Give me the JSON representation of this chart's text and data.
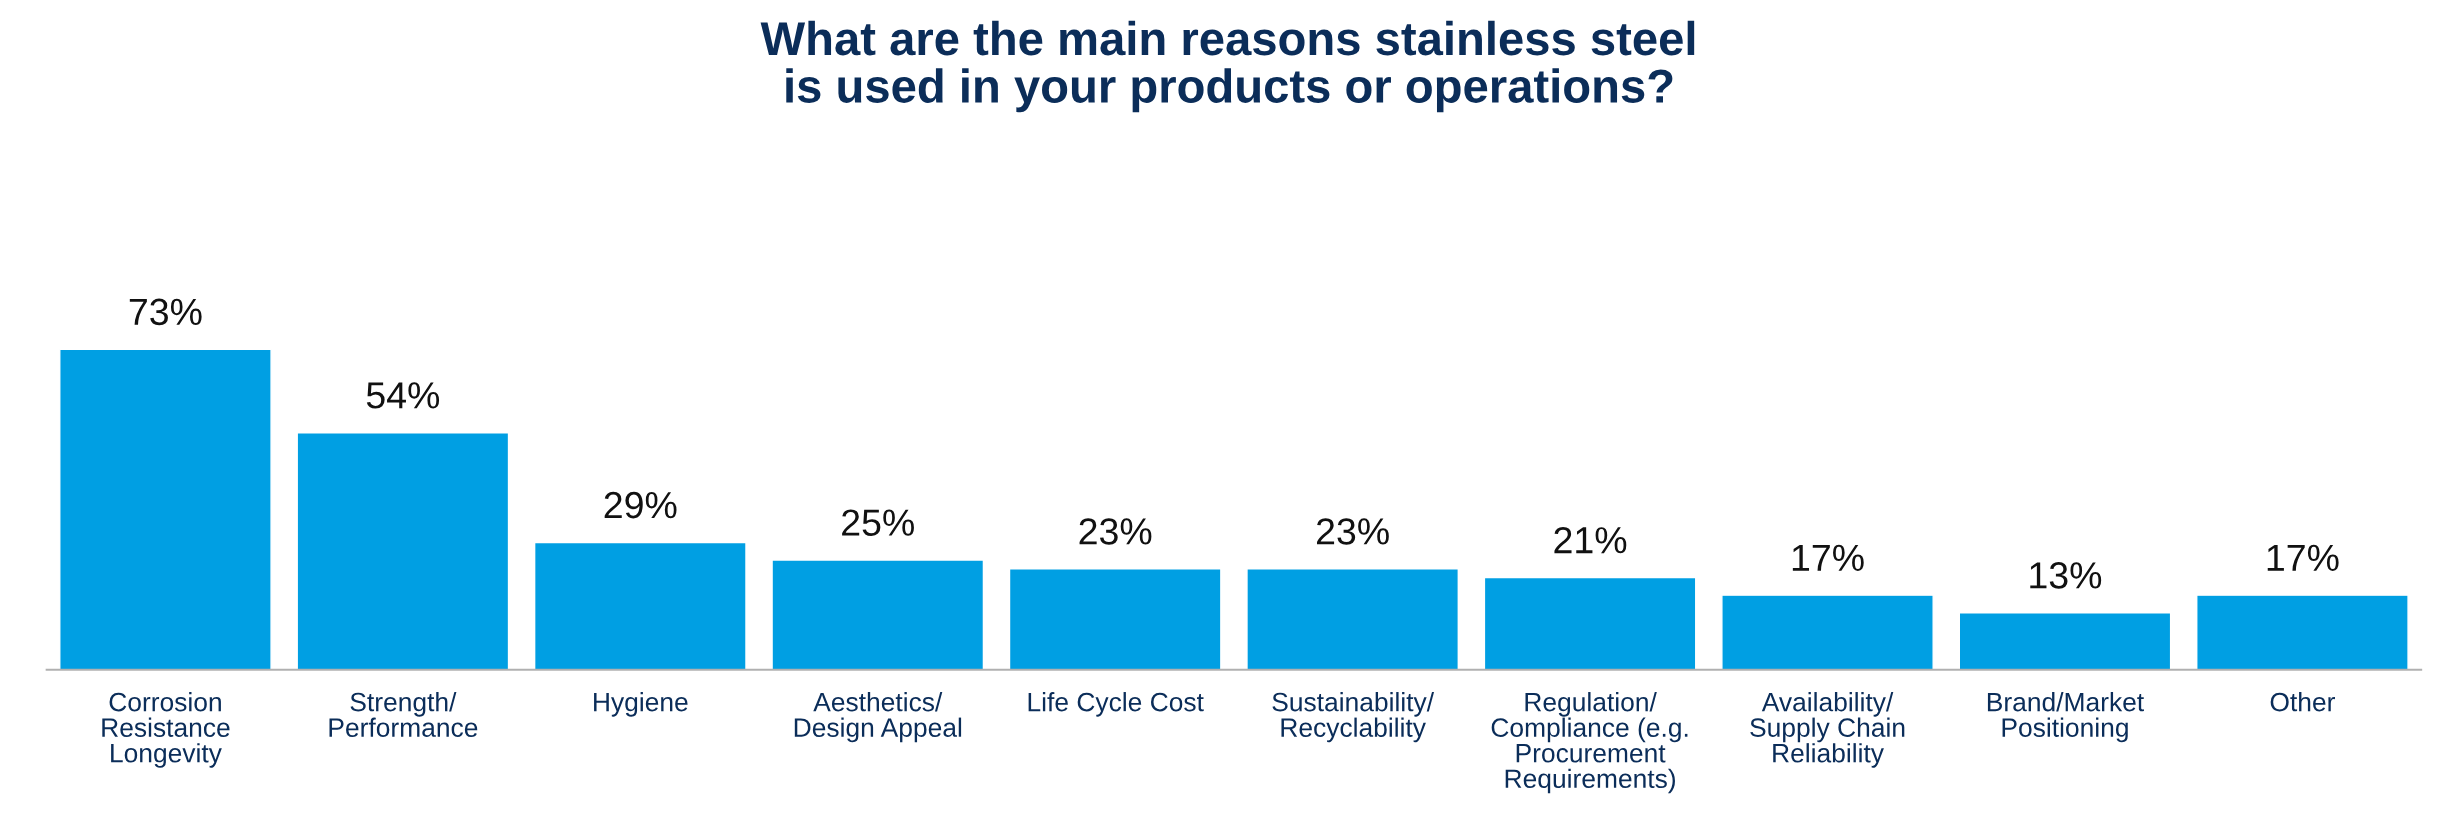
{
  "chart_data": {
    "type": "bar",
    "title": "What are the main reasons stainless steel\nis used in your products or operations?",
    "categories": [
      "Corrosion\nResistance\nLongevity",
      "Strength/\nPerformance",
      "Hygiene",
      "Aesthetics/\nDesign Appeal",
      "Life Cycle Cost",
      "Sustainability/\nRecyclability",
      "Regulation/\nCompliance (e.g.\nProcurement\nRequirements)",
      "Availability/\nSupply Chain\nReliability",
      "Brand/Market\nPositioning",
      "Other"
    ],
    "values": [
      73,
      54,
      29,
      25,
      23,
      23,
      21,
      17,
      13,
      17
    ],
    "value_labels": [
      "73%",
      "54%",
      "29%",
      "25%",
      "23%",
      "23%",
      "21%",
      "17%",
      "13%",
      "17%"
    ],
    "color": "#009fe3",
    "grid": false,
    "legend": false
  }
}
